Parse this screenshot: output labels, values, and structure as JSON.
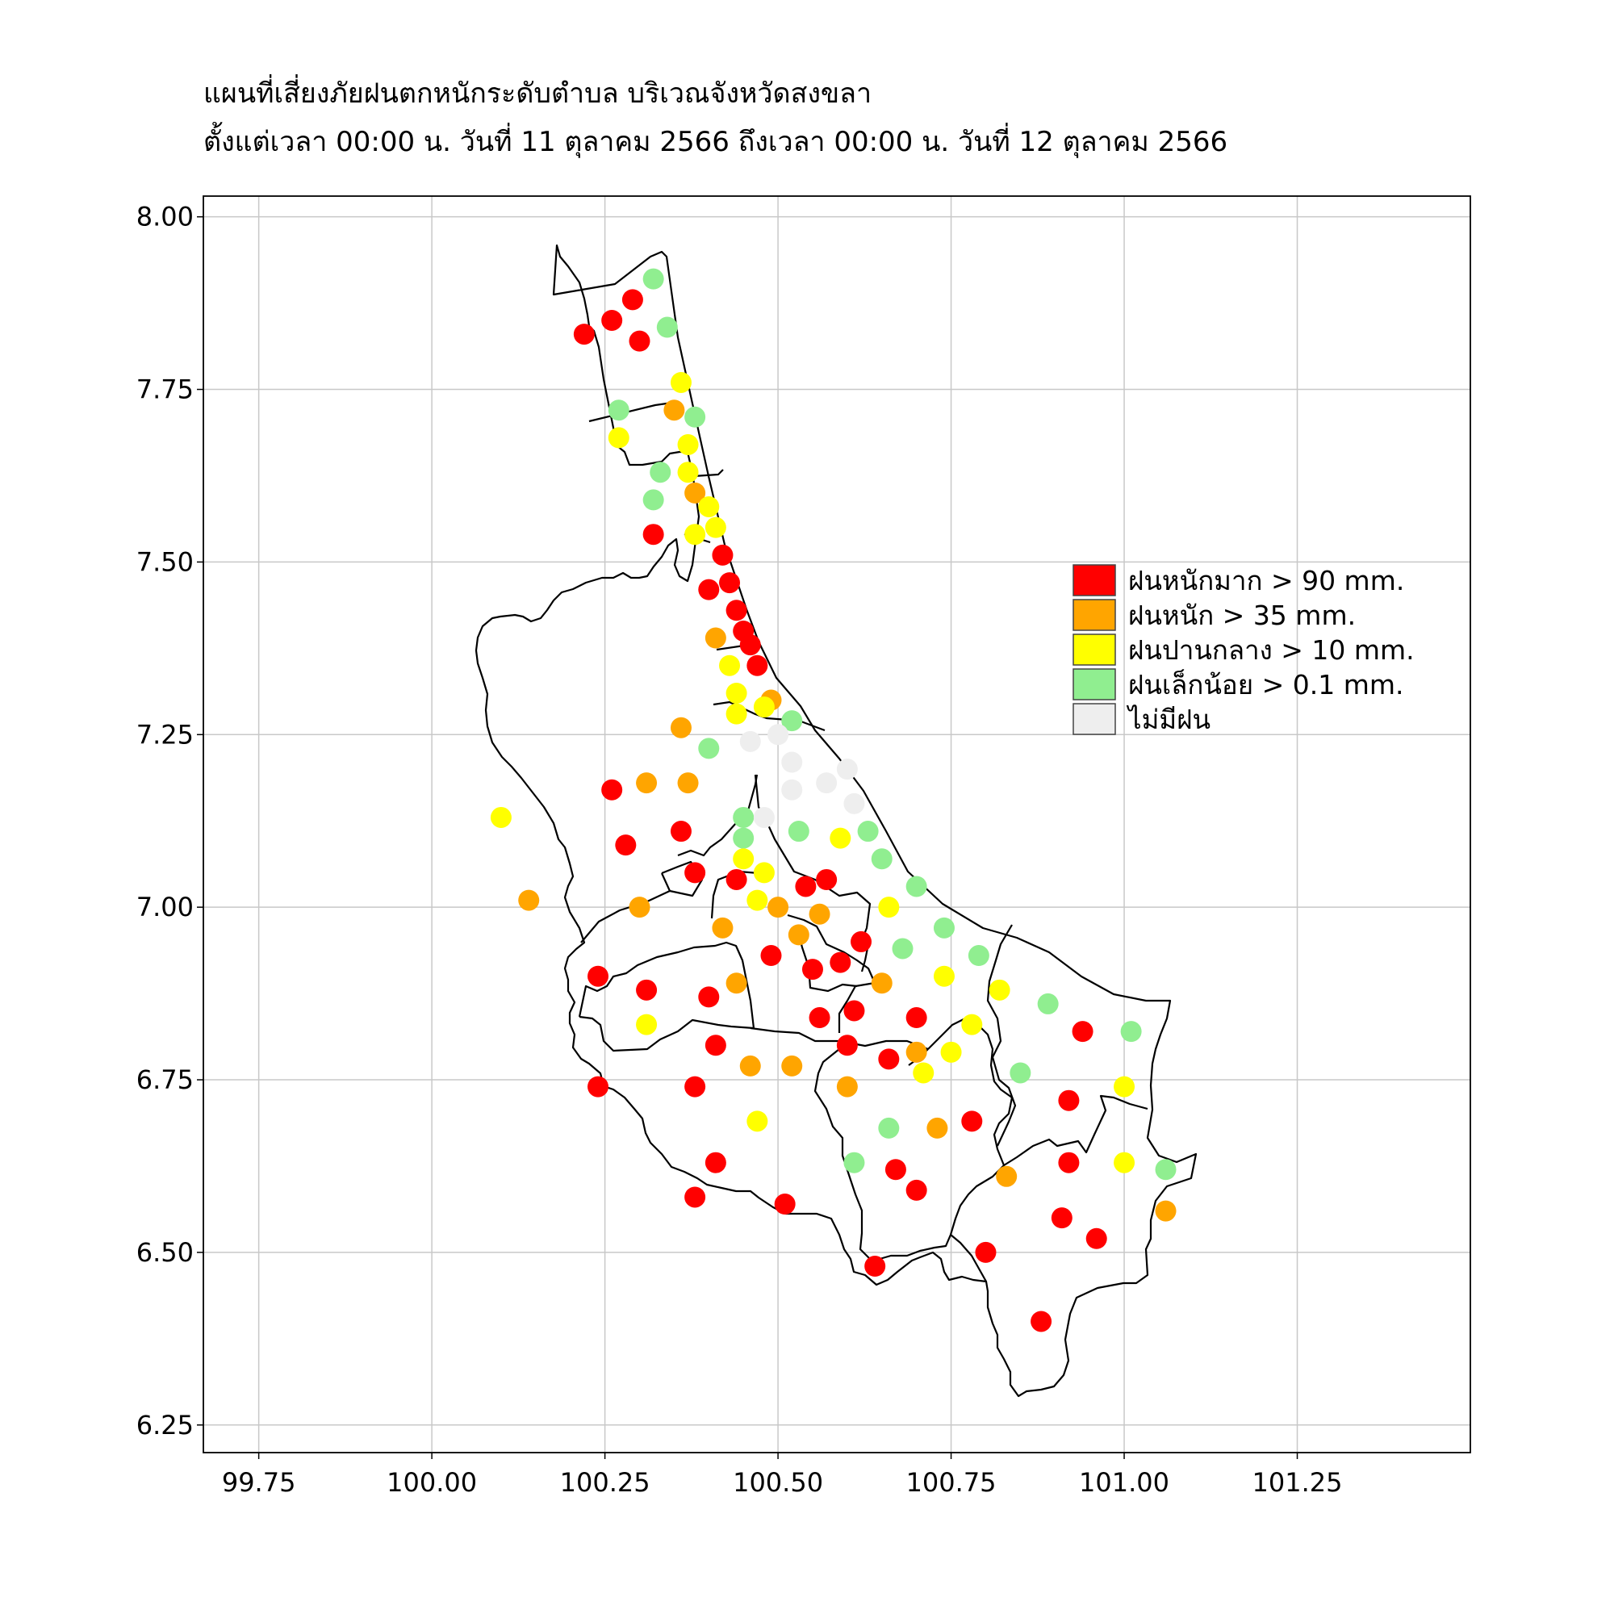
{
  "title": {
    "line1": "แผนที่เสี่ยงภัยฝนตกหนักระดับตำบล บริเวณจังหวัดสงขลา",
    "line2": "ตั้งแต่เวลา 00:00 น. วันที่ 11 ตุลาคม 2566 ถึงเวลา 00:00 น. วันที่ 12 ตุลาคม 2566"
  },
  "chart_data": {
    "type": "scatter",
    "xlim": [
      99.67,
      101.5
    ],
    "ylim": [
      6.21,
      8.03
    ],
    "x_ticks": [
      "99.75",
      "100.00",
      "100.25",
      "100.50",
      "100.75",
      "101.00",
      "101.25"
    ],
    "y_ticks": [
      "8.00",
      "7.75",
      "7.50",
      "7.25",
      "7.00",
      "6.75",
      "6.50",
      "6.25"
    ],
    "grid": true,
    "legend_position": "right",
    "legend": [
      {
        "key": "vheavy",
        "label": "ฝนหนักมาก > 90 mm.",
        "color": "#ff0000"
      },
      {
        "key": "heavy",
        "label": "ฝนหนัก > 35 mm.",
        "color": "#ffa500"
      },
      {
        "key": "moderate",
        "label": "ฝนปานกลาง > 10 mm.",
        "color": "#ffff00"
      },
      {
        "key": "light",
        "label": "ฝนเล็กน้อย > 0.1 mm.",
        "color": "#90ee90"
      },
      {
        "key": "none",
        "label": "ไม่มีฝน",
        "color": "#eeeeee"
      }
    ],
    "points": [
      [
        100.22,
        7.83,
        "vheavy"
      ],
      [
        100.26,
        7.85,
        "vheavy"
      ],
      [
        100.29,
        7.88,
        "vheavy"
      ],
      [
        100.3,
        7.82,
        "vheavy"
      ],
      [
        100.32,
        7.91,
        "light"
      ],
      [
        100.34,
        7.84,
        "light"
      ],
      [
        100.36,
        7.76,
        "moderate"
      ],
      [
        100.35,
        7.72,
        "heavy"
      ],
      [
        100.38,
        7.71,
        "light"
      ],
      [
        100.27,
        7.72,
        "light"
      ],
      [
        100.27,
        7.68,
        "moderate"
      ],
      [
        100.37,
        7.67,
        "moderate"
      ],
      [
        100.37,
        7.63,
        "moderate"
      ],
      [
        100.33,
        7.63,
        "light"
      ],
      [
        100.32,
        7.59,
        "light"
      ],
      [
        100.38,
        7.6,
        "heavy"
      ],
      [
        100.4,
        7.58,
        "moderate"
      ],
      [
        100.41,
        7.55,
        "moderate"
      ],
      [
        100.38,
        7.54,
        "moderate"
      ],
      [
        100.32,
        7.54,
        "vheavy"
      ],
      [
        100.42,
        7.51,
        "vheavy"
      ],
      [
        100.4,
        7.46,
        "vheavy"
      ],
      [
        100.43,
        7.47,
        "vheavy"
      ],
      [
        100.44,
        7.43,
        "vheavy"
      ],
      [
        100.45,
        7.4,
        "vheavy"
      ],
      [
        100.46,
        7.38,
        "vheavy"
      ],
      [
        100.41,
        7.39,
        "heavy"
      ],
      [
        100.43,
        7.35,
        "moderate"
      ],
      [
        100.47,
        7.35,
        "vheavy"
      ],
      [
        100.44,
        7.31,
        "moderate"
      ],
      [
        100.49,
        7.3,
        "heavy"
      ],
      [
        100.44,
        7.28,
        "moderate"
      ],
      [
        100.48,
        7.29,
        "moderate"
      ],
      [
        100.52,
        7.27,
        "light"
      ],
      [
        100.46,
        7.24,
        "none"
      ],
      [
        100.5,
        7.25,
        "none"
      ],
      [
        100.52,
        7.21,
        "none"
      ],
      [
        100.36,
        7.26,
        "heavy"
      ],
      [
        100.4,
        7.23,
        "light"
      ],
      [
        100.31,
        7.18,
        "heavy"
      ],
      [
        100.37,
        7.18,
        "heavy"
      ],
      [
        100.26,
        7.17,
        "vheavy"
      ],
      [
        100.52,
        7.17,
        "none"
      ],
      [
        100.57,
        7.18,
        "none"
      ],
      [
        100.6,
        7.2,
        "none"
      ],
      [
        100.61,
        7.15,
        "none"
      ],
      [
        100.45,
        7.13,
        "light"
      ],
      [
        100.48,
        7.13,
        "none"
      ],
      [
        100.36,
        7.11,
        "vheavy"
      ],
      [
        100.28,
        7.09,
        "vheavy"
      ],
      [
        100.1,
        7.13,
        "moderate"
      ],
      [
        100.45,
        7.1,
        "light"
      ],
      [
        100.53,
        7.11,
        "light"
      ],
      [
        100.59,
        7.1,
        "moderate"
      ],
      [
        100.63,
        7.11,
        "light"
      ],
      [
        100.65,
        7.07,
        "light"
      ],
      [
        100.45,
        7.07,
        "moderate"
      ],
      [
        100.48,
        7.05,
        "moderate"
      ],
      [
        100.38,
        7.05,
        "vheavy"
      ],
      [
        100.44,
        7.04,
        "vheavy"
      ],
      [
        100.54,
        7.03,
        "vheavy"
      ],
      [
        100.57,
        7.04,
        "vheavy"
      ],
      [
        100.7,
        7.03,
        "light"
      ],
      [
        100.14,
        7.01,
        "heavy"
      ],
      [
        100.3,
        7.0,
        "heavy"
      ],
      [
        100.47,
        7.01,
        "moderate"
      ],
      [
        100.5,
        7.0,
        "heavy"
      ],
      [
        100.56,
        6.99,
        "heavy"
      ],
      [
        100.66,
        7.0,
        "moderate"
      ],
      [
        100.42,
        6.97,
        "heavy"
      ],
      [
        100.53,
        6.96,
        "heavy"
      ],
      [
        100.74,
        6.97,
        "light"
      ],
      [
        100.62,
        6.95,
        "vheavy"
      ],
      [
        100.68,
        6.94,
        "light"
      ],
      [
        100.79,
        6.93,
        "light"
      ],
      [
        100.49,
        6.93,
        "vheavy"
      ],
      [
        100.55,
        6.91,
        "vheavy"
      ],
      [
        100.59,
        6.92,
        "vheavy"
      ],
      [
        100.24,
        6.9,
        "vheavy"
      ],
      [
        100.31,
        6.88,
        "vheavy"
      ],
      [
        100.4,
        6.87,
        "vheavy"
      ],
      [
        100.44,
        6.89,
        "heavy"
      ],
      [
        100.65,
        6.89,
        "heavy"
      ],
      [
        100.74,
        6.9,
        "moderate"
      ],
      [
        100.82,
        6.88,
        "moderate"
      ],
      [
        100.89,
        6.86,
        "light"
      ],
      [
        100.56,
        6.84,
        "vheavy"
      ],
      [
        100.61,
        6.85,
        "vheavy"
      ],
      [
        100.7,
        6.84,
        "vheavy"
      ],
      [
        100.78,
        6.83,
        "moderate"
      ],
      [
        100.31,
        6.83,
        "moderate"
      ],
      [
        100.94,
        6.82,
        "vheavy"
      ],
      [
        101.01,
        6.82,
        "light"
      ],
      [
        100.6,
        6.8,
        "vheavy"
      ],
      [
        100.41,
        6.8,
        "vheavy"
      ],
      [
        100.7,
        6.79,
        "heavy"
      ],
      [
        100.75,
        6.79,
        "moderate"
      ],
      [
        100.66,
        6.78,
        "vheavy"
      ],
      [
        100.46,
        6.77,
        "heavy"
      ],
      [
        100.52,
        6.77,
        "heavy"
      ],
      [
        100.71,
        6.76,
        "moderate"
      ],
      [
        100.85,
        6.76,
        "light"
      ],
      [
        100.24,
        6.74,
        "vheavy"
      ],
      [
        100.38,
        6.74,
        "vheavy"
      ],
      [
        100.6,
        6.74,
        "heavy"
      ],
      [
        101.0,
        6.74,
        "moderate"
      ],
      [
        100.92,
        6.72,
        "vheavy"
      ],
      [
        100.47,
        6.69,
        "moderate"
      ],
      [
        100.78,
        6.69,
        "vheavy"
      ],
      [
        100.73,
        6.68,
        "heavy"
      ],
      [
        100.66,
        6.68,
        "light"
      ],
      [
        100.41,
        6.63,
        "vheavy"
      ],
      [
        100.61,
        6.63,
        "light"
      ],
      [
        100.67,
        6.62,
        "vheavy"
      ],
      [
        100.92,
        6.63,
        "vheavy"
      ],
      [
        101.0,
        6.63,
        "moderate"
      ],
      [
        101.06,
        6.62,
        "light"
      ],
      [
        100.83,
        6.61,
        "heavy"
      ],
      [
        100.38,
        6.58,
        "vheavy"
      ],
      [
        100.7,
        6.59,
        "vheavy"
      ],
      [
        100.51,
        6.57,
        "vheavy"
      ],
      [
        100.91,
        6.55,
        "vheavy"
      ],
      [
        101.06,
        6.56,
        "heavy"
      ],
      [
        100.96,
        6.52,
        "vheavy"
      ],
      [
        100.8,
        6.5,
        "vheavy"
      ],
      [
        100.64,
        6.48,
        "vheavy"
      ],
      [
        100.88,
        6.4,
        "vheavy"
      ]
    ]
  }
}
